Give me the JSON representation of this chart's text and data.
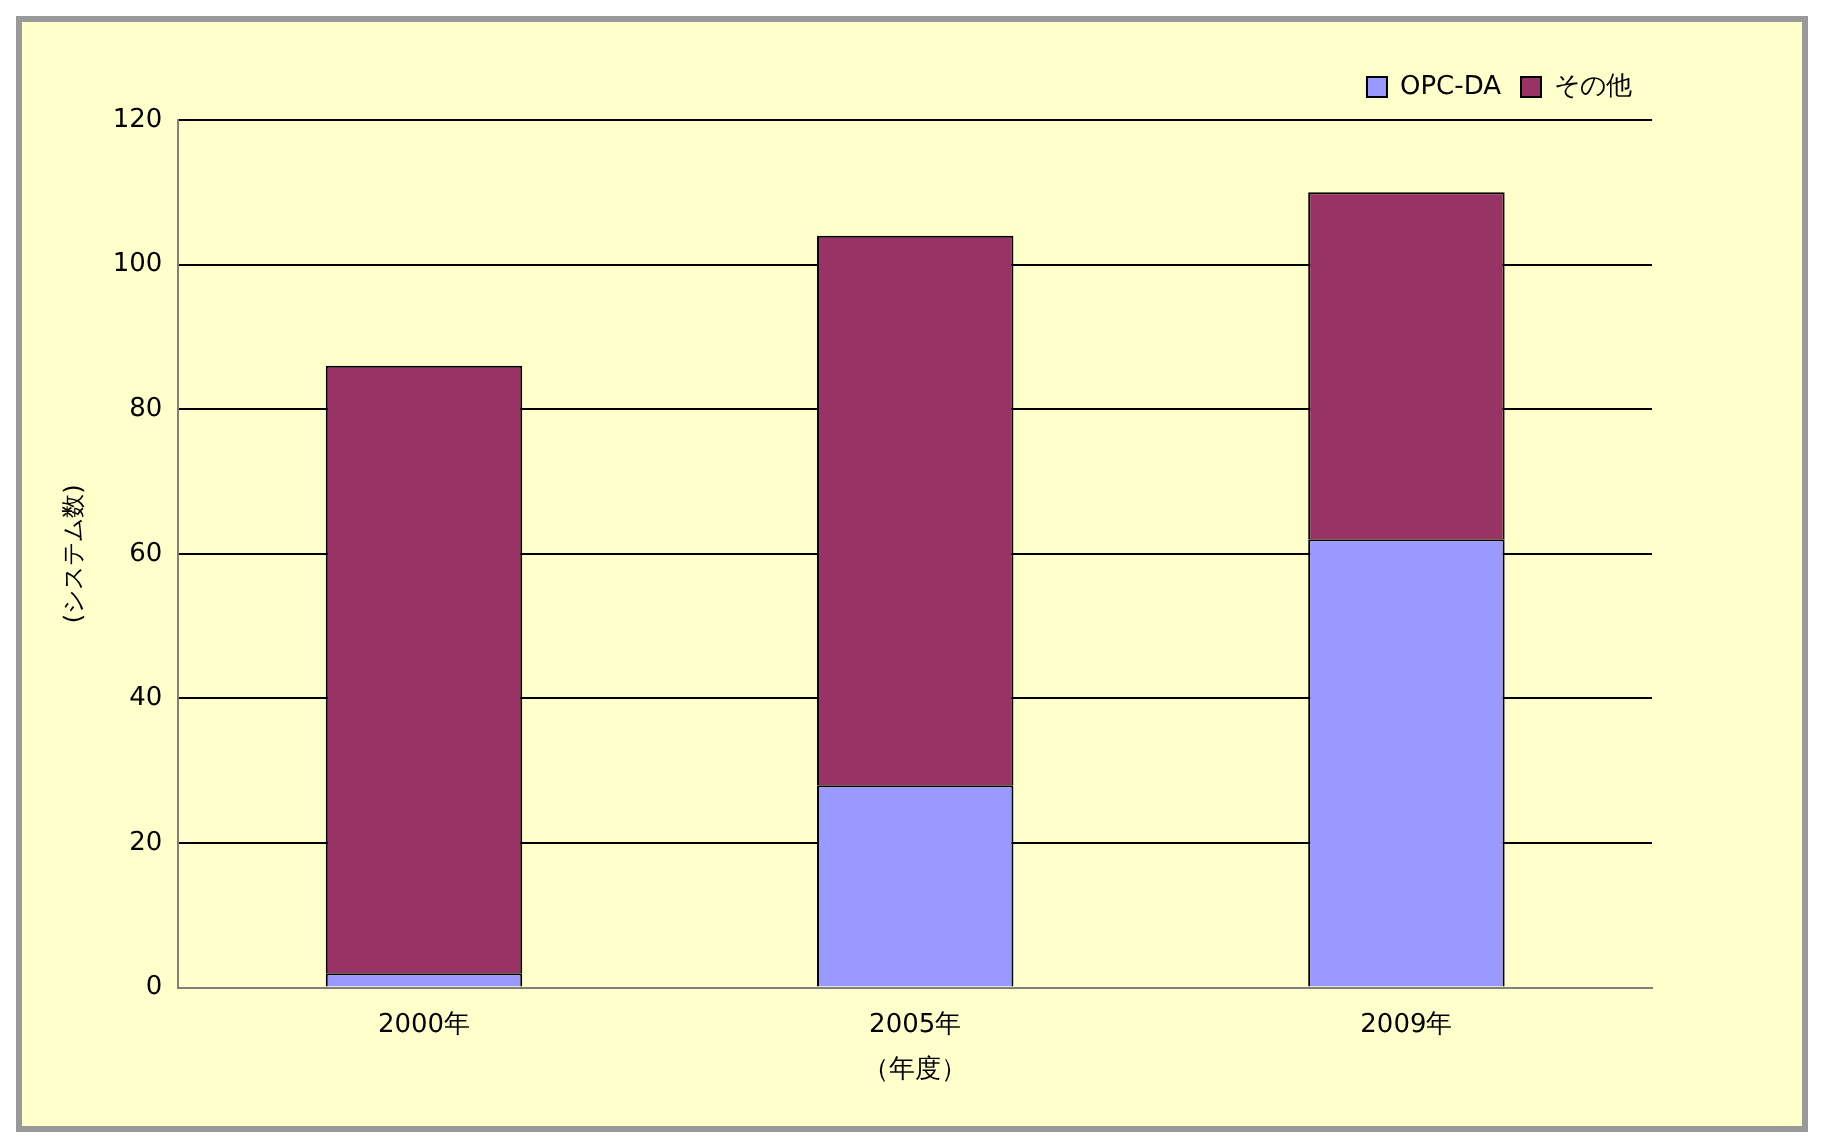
{
  "chart_data": {
    "type": "bar",
    "stacked": true,
    "xlabel": "（年度）",
    "ylabel": "(システム数)",
    "categories": [
      "2000年",
      "2005年",
      "2009年"
    ],
    "series": [
      {
        "name": "OPC-DA",
        "color": "#9999ff",
        "values": [
          2,
          28,
          62
        ]
      },
      {
        "name": "その他",
        "color": "#993366",
        "values": [
          84,
          76,
          48
        ]
      }
    ],
    "ylim": [
      0,
      120
    ],
    "yticks": [
      0,
      20,
      40,
      60,
      80,
      100,
      120
    ],
    "grid": "y",
    "legend": "top right"
  }
}
